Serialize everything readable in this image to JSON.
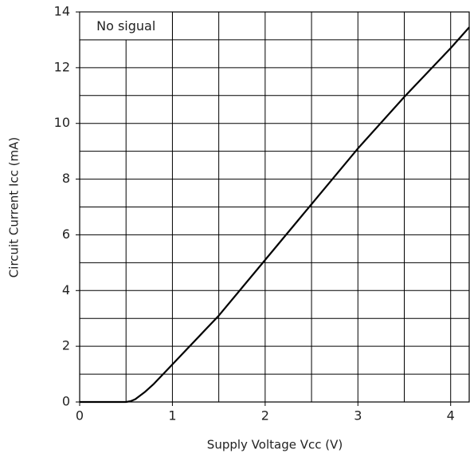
{
  "chart_data": {
    "type": "line",
    "xlabel": "Supply Voltage  Vcc  (V)",
    "ylabel": "Circuit Current  Icc  (mA)",
    "annotation": "No sigual",
    "x": [
      0,
      0.5,
      0.55,
      0.6,
      0.7,
      0.8,
      1.0,
      1.5,
      2.0,
      2.5,
      3.0,
      3.5,
      4.0,
      4.2
    ],
    "series": [
      {
        "color": "#000000",
        "values": [
          0,
          0,
          0.03,
          0.1,
          0.35,
          0.65,
          1.35,
          3.1,
          5.1,
          7.1,
          9.1,
          10.95,
          12.7,
          13.45
        ]
      }
    ],
    "xlim": [
      0,
      4.2
    ],
    "ylim": [
      0,
      14
    ],
    "xticks": [
      0,
      1,
      2,
      3,
      4
    ],
    "yticks": [
      0,
      2,
      4,
      6,
      8,
      10,
      12,
      14
    ],
    "xgrid": [
      0.5,
      1,
      1.5,
      2,
      2.5,
      3,
      3.5,
      4
    ],
    "ygrid": [
      1,
      2,
      3,
      4,
      5,
      6,
      7,
      8,
      9,
      10,
      11,
      12,
      13
    ],
    "grid": true
  }
}
